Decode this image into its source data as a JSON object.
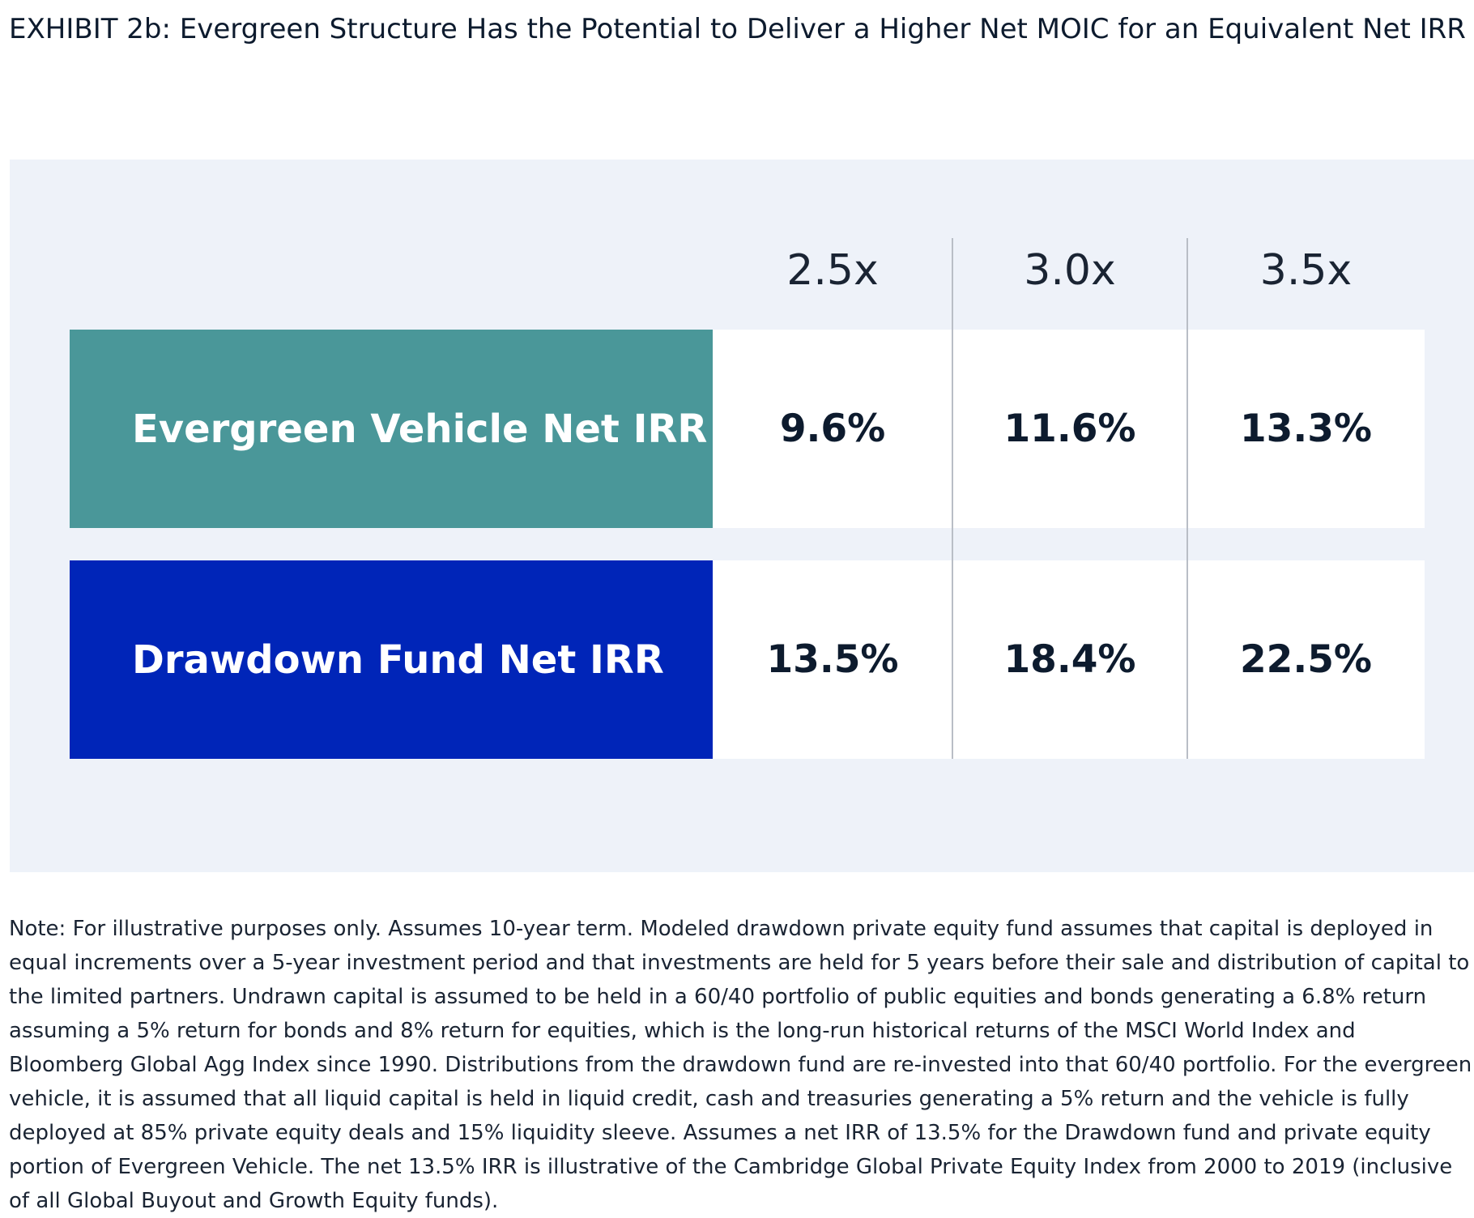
{
  "title": "EXHIBIT 2b: Evergreen Structure Has the Potential to Deliver a Higher Net MOIC for an Equivalent Net IRR",
  "table": {
    "columns": [
      "2.5x",
      "3.0x",
      "3.5x"
    ],
    "rows": [
      {
        "label": "Evergreen Vehicle Net IRR",
        "values": [
          "9.6%",
          "11.6%",
          "13.3%"
        ]
      },
      {
        "label": "Drawdown Fund Net IRR",
        "values": [
          "13.5%",
          "18.4%",
          "22.5%"
        ]
      }
    ]
  },
  "note": "Note: For illustrative purposes only. Assumes 10-year term. Modeled drawdown private equity fund assumes that capital is deployed in equal increments over a 5-year investment period and that investments are held for 5 years before their sale and distribution of capital to the limited partners. Undrawn capital is assumed to be held in a 60/40 portfolio of public equities and bonds generating a 6.8% return assuming a 5% return for bonds and 8% return for equities, which is the long-run historical returns of the MSCI World Index and Bloomberg Global Agg Index since 1990. Distributions from the drawdown fund are re-invested into that 60/40 portfolio. For the evergreen vehicle, it is assumed that all liquid capital is held in liquid credit, cash and treasuries generating a 5% return and the vehicle is fully deployed at 85% private equity deals and 15% liquidity sleeve. Assumes a net IRR of 13.5% for the Drawdown fund and private equity portion of Evergreen Vehicle. The net 13.5% IRR is illustrative of the Cambridge Global Private Equity Index from 2000 to 2019 (inclusive of all Global Buyout and Growth Equity funds)."
}
